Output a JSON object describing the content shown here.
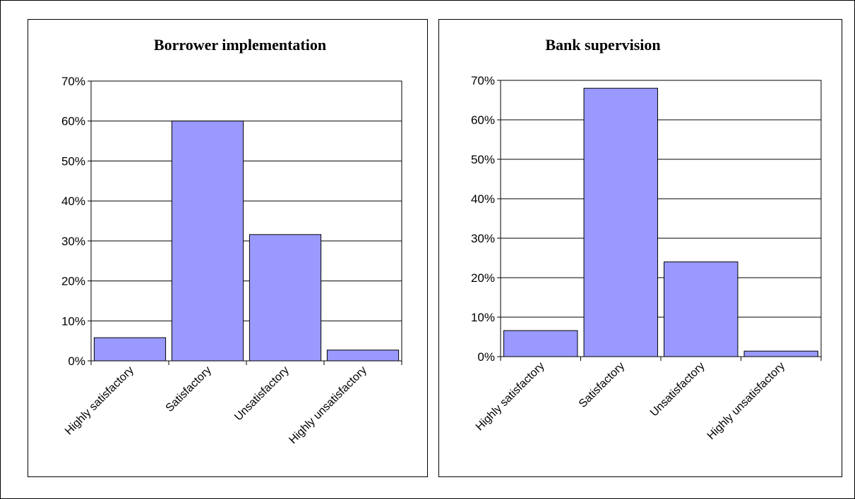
{
  "chart_data": [
    {
      "type": "bar",
      "title": "Borrower implementation",
      "categories": [
        "Highly satisfactory",
        "Satisfactory",
        "Unsatisfactory",
        "Highly unsatisfactory"
      ],
      "values": [
        0.058,
        0.6,
        0.316,
        0.027
      ],
      "ylim": [
        0,
        0.7
      ],
      "yticks": [
        "0%",
        "10%",
        "20%",
        "30%",
        "40%",
        "50%",
        "60%",
        "70%"
      ],
      "xlabel": "",
      "ylabel": "",
      "grid": true,
      "legend": "none",
      "bar_color": "#9999ff"
    },
    {
      "type": "bar",
      "title": "Bank supervision",
      "categories": [
        "Highly satisfactory",
        "Satisfactory",
        "Unsatisfactory",
        "Highly unsatisfactory"
      ],
      "values": [
        0.066,
        0.68,
        0.24,
        0.014
      ],
      "ylim": [
        0,
        0.7
      ],
      "yticks": [
        "0%",
        "10%",
        "20%",
        "30%",
        "40%",
        "50%",
        "60%",
        "70%"
      ],
      "xlabel": "",
      "ylabel": "",
      "grid": true,
      "legend": "none",
      "bar_color": "#9999ff"
    }
  ]
}
